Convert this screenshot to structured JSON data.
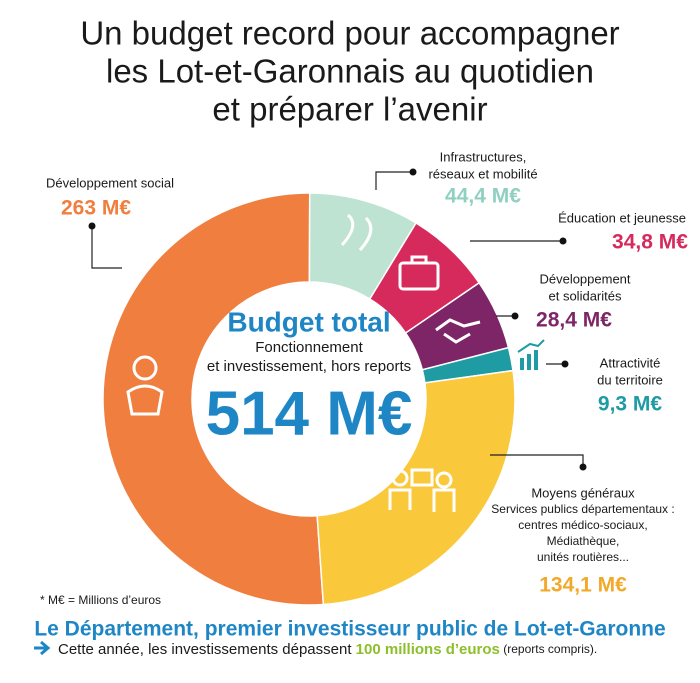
{
  "chart_data": {
    "type": "donut",
    "title": [
      "Un budget record pour accompagner",
      "les Lot-et-Garonnais au quotidien",
      "et préparer l’avenir"
    ],
    "center_title": "Budget total",
    "center_subtitle": [
      "Fonctionnement",
      "et investissement, hors reports"
    ],
    "total": {
      "value": 514,
      "label": "514 M€"
    },
    "categories": [
      [
        "Développement social"
      ],
      [
        "Infrastructures,",
        "réseaux et mobilité"
      ],
      [
        "Éducation et jeunesse"
      ],
      [
        "Développement",
        "et solidarités"
      ],
      [
        "Attractivité",
        "du territoire"
      ],
      [
        "Moyens généraux"
      ]
    ],
    "values": [
      263,
      44.4,
      34.8,
      28.4,
      9.3,
      134.1
    ],
    "value_labels": [
      "263 M€",
      "44,4 M€",
      "34,8 M€",
      "28,4 M€",
      "9,3 M€",
      "134,1 M€"
    ],
    "colors": [
      "#f07e3e",
      "#bfe3d3",
      "#d62a5c",
      "#7d2567",
      "#1f9ca3",
      "#f9c93b"
    ],
    "value_colors": [
      "#f07e3e",
      "#8fd0c0",
      "#d62a5c",
      "#7d2567",
      "#1f9ca3",
      "#f2a92a"
    ],
    "annotation": [
      "Services publics départementaux :",
      "centres médico-sociaux,",
      "Médiathèque,",
      "unités routières..."
    ],
    "footnote": "* M€ = Millions d’euros",
    "banner": "Le Département, premier investisseur public de Lot-et-Garonne",
    "banner_text": [
      "Cette année, les investissements dépassent ",
      "100 millions d’euros",
      " (reports compris)."
    ]
  }
}
